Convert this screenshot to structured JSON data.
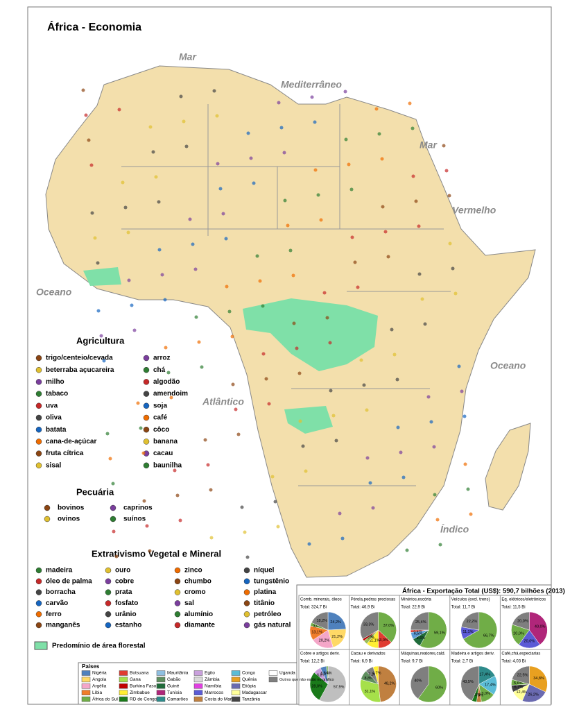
{
  "title": "África - Economia",
  "sea_labels": [
    "Mar",
    "Mediterrâneo",
    "Mar",
    "Vermelho",
    "Oceano",
    "Atlântico",
    "Oceano",
    "Índico"
  ],
  "agricultura": {
    "title": "Agricultura",
    "items": [
      "trigo/centeio/cevada",
      "beterraba açucareira",
      "milho",
      "tabaco",
      "uva",
      "oliva",
      "batata",
      "cana-de-açúcar",
      "fruta cítrica",
      "sisal",
      "arroz",
      "chá",
      "algodão",
      "amendoim",
      "soja",
      "café",
      "côco",
      "banana",
      "cacau",
      "baunilha"
    ]
  },
  "pecuaria": {
    "title": "Pecuária",
    "items": [
      "bovinos",
      "ovinos",
      "caprinos",
      "suínos"
    ]
  },
  "extrativismo": {
    "title": "Extrativismo Vegetal e Mineral",
    "items": [
      "madeira",
      "óleo de palma",
      "borracha",
      "carvão",
      "ferro",
      "manganês",
      "ouro",
      "cobre",
      "prata",
      "fosfato",
      "urânio",
      "estanho",
      "zinco",
      "chumbo",
      "cromo",
      "sal",
      "alumínio",
      "diamante",
      "níquel",
      "tungstênio",
      "platina",
      "titânio",
      "petróleo",
      "gás natural"
    ]
  },
  "forest_label": "Predomínio de área florestal",
  "export_panel": {
    "title": "África - Exportação Total (US$): 590,7 bilhões (2013)",
    "chart_data": [
      {
        "type": "pie",
        "title": "Comb. minerais, óleos",
        "total": "Total: 324,7 Bi",
        "values": [
          24.2,
          21.2,
          20.2,
          13.1,
          3.0,
          18.2
        ],
        "value_labels": [
          "24,2%",
          "21,2%",
          "20,2%",
          "13,1%",
          "3,0%",
          "18,2%"
        ],
        "colors": [
          "#4f81bd",
          "#ffd966",
          "#f4a6c8",
          "#f07d2a",
          "#70ad47",
          "#7f7f7f"
        ]
      },
      {
        "type": "pie",
        "title": "Pérola,pedras preciosas",
        "total": "Total: 46,9 Bi",
        "values": [
          37.0,
          13.0,
          11.1,
          3.7,
          1.9,
          33.3
        ],
        "value_labels": [
          "37,0%",
          "13,0%",
          "11,1%",
          "3,7%",
          "1,9%",
          "33,3%"
        ],
        "colors": [
          "#70ad47",
          "#e03c31",
          "#ffee33",
          "#9bbb59",
          "#c00000",
          "#7f7f7f"
        ]
      },
      {
        "type": "pie",
        "title": "Minérios,escória",
        "total": "Total: 22,9 Bi",
        "values": [
          59.1,
          8.6,
          6.5,
          2.2,
          25.4
        ],
        "value_labels": [
          "59,1%",
          "8,6%",
          "6,5%",
          "2,2%",
          "25,4%"
        ],
        "colors": [
          "#70ad47",
          "#1f6b3a",
          "#5b9bd5",
          "#e03c31",
          "#7f7f7f"
        ]
      },
      {
        "type": "pie",
        "title": "Veículos (excl. trens)",
        "total": "Total: 11,7 Bi",
        "values": [
          66.7,
          11.1,
          22.2
        ],
        "value_labels": [
          "66,7%",
          "11,1%",
          "22,2%"
        ],
        "colors": [
          "#70ad47",
          "#5b5bd6",
          "#7f7f7f"
        ]
      },
      {
        "type": "pie",
        "title": "Eq. elétricos/eletrônicos",
        "total": "Total: 11,5 Bi",
        "values": [
          40.0,
          20.0,
          20.0,
          20.0
        ],
        "value_labels": [
          "40,0%",
          "20,0%",
          "20,0%",
          "20,0%"
        ],
        "colors": [
          "#b0267a",
          "#5b5bd6",
          "#70ad47",
          "#7f7f7f"
        ]
      },
      {
        "type": "pie",
        "title": "Cobre e artigos deriv.",
        "total": "Total: 12,2 Bi",
        "values": [
          57.5,
          28.0,
          6.8,
          5.5,
          1.4
        ],
        "value_labels": [
          "57,5%",
          "28,0%",
          "6,8%",
          "5,5%",
          "1,4%"
        ],
        "colors": [
          "#bfbfbf",
          "#1a7a1a",
          "#c9a0dc",
          "#4f81bd",
          "#70ad47"
        ]
      },
      {
        "type": "pie",
        "title": "Cacau e derivados",
        "total": "Total: 6,9 Bi",
        "values": [
          48.2,
          31.1,
          8.8,
          7.3,
          4.7
        ],
        "value_labels": [
          "48,2%",
          "31,1%",
          "8,8%",
          "7,3%",
          "4,7%"
        ],
        "colors": [
          "#c08040",
          "#a6e04a",
          "#5f8f5f",
          "#7f7f7f",
          "#ffee33"
        ]
      },
      {
        "type": "pie",
        "title": "Máquinas,reatores,cald.",
        "total": "Total: 9,7 Bi",
        "values": [
          60,
          40
        ],
        "value_labels": [
          "60%",
          "40%"
        ],
        "colors": [
          "#70ad47",
          "#7f7f7f"
        ]
      },
      {
        "type": "pie",
        "title": "Madeira e artigos deriv.",
        "total": "Total: 2,7 Bi",
        "values": [
          17.4,
          17.4,
          13.0,
          4.3,
          4.3,
          43.5
        ],
        "value_labels": [
          "17,4%",
          "17,4%",
          "13,0%",
          "4,3%",
          "4,3%",
          "43,5%"
        ],
        "colors": [
          "#2e8b8b",
          "#5bbcd6",
          "#70ad47",
          "#c08040",
          "#1a7a1a",
          "#7f7f7f"
        ]
      },
      {
        "type": "pie",
        "title": "Café,chá,especiarias",
        "total": "Total: 4,03 Bi",
        "values": [
          34.8,
          26.2,
          12.4,
          6.7,
          5.6,
          22.5
        ],
        "value_labels": [
          "34,8%",
          "26,2%",
          "12,4%",
          "6,7%",
          "5,6%",
          "22,5%"
        ],
        "colors": [
          "#e8a020",
          "#6a6ab0",
          "#ffff99",
          "#444444",
          "#70ad47",
          "#7f7f7f"
        ]
      }
    ]
  },
  "countries": {
    "title": "Países",
    "items": [
      {
        "name": "Nigéria",
        "color": "#4f81bd"
      },
      {
        "name": "Angola",
        "color": "#ffd966"
      },
      {
        "name": "Argélia",
        "color": "#f4a6c8"
      },
      {
        "name": "Líbia",
        "color": "#f07d2a"
      },
      {
        "name": "África do Sul",
        "color": "#70ad47"
      },
      {
        "name": "Botsuana",
        "color": "#e03c31"
      },
      {
        "name": "Gana",
        "color": "#a6e04a"
      },
      {
        "name": "Burkina Faso",
        "color": "#c00000"
      },
      {
        "name": "Zimbabue",
        "color": "#ffee33"
      },
      {
        "name": "RD do Congo",
        "color": "#1a7a1a"
      },
      {
        "name": "Mauritânia",
        "color": "#8fbfe0"
      },
      {
        "name": "Gabão",
        "color": "#5f8f5f"
      },
      {
        "name": "Guiné",
        "color": "#1f6b3a"
      },
      {
        "name": "Tunísia",
        "color": "#b0267a"
      },
      {
        "name": "Camarões",
        "color": "#2e8b8b"
      },
      {
        "name": "Egito",
        "color": "#c9a0dc"
      },
      {
        "name": "Zâmbia",
        "color": "#d9d9d9"
      },
      {
        "name": "Namíbia",
        "color": "#e040e0"
      },
      {
        "name": "Marrocos",
        "color": "#5b5bd6"
      },
      {
        "name": "Costa do Marfim",
        "color": "#c08040"
      },
      {
        "name": "Congo",
        "color": "#5bbcd6"
      },
      {
        "name": "Quênia",
        "color": "#e8a020"
      },
      {
        "name": "Etiópia",
        "color": "#6a6ab0"
      },
      {
        "name": "Madagascar",
        "color": "#ffff99"
      },
      {
        "name": "Tanzânia",
        "color": "#444444"
      },
      {
        "name": "Uganda",
        "color": "#ffffff"
      },
      {
        "name": "Outros que não estão no gráfico",
        "color": "#7f7f7f"
      }
    ]
  }
}
